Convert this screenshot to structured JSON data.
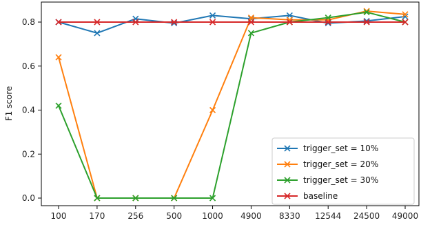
{
  "chart_data": {
    "type": "line",
    "title": "",
    "xlabel": "",
    "ylabel": "F1 score",
    "categories": [
      "100",
      "170",
      "256",
      "500",
      "1000",
      "4900",
      "8330",
      "12544",
      "24500",
      "49000"
    ],
    "ylim": [
      -0.03,
      0.9
    ],
    "yticks": [
      "0.0",
      "0.2",
      "0.4",
      "0.6",
      "0.8"
    ],
    "ytick_values": [
      0.0,
      0.2,
      0.4,
      0.6,
      0.8
    ],
    "grid": false,
    "legend_position": "lower-right",
    "marker": "x",
    "series": [
      {
        "name": "trigger_set = 10%",
        "color": "#1f77b4",
        "values": [
          0.8,
          0.75,
          0.815,
          0.795,
          0.83,
          0.815,
          0.83,
          0.795,
          0.805,
          0.825
        ]
      },
      {
        "name": "trigger_set = 20%",
        "color": "#ff7f0e",
        "values": [
          0.64,
          0.0,
          0.0,
          0.0,
          0.4,
          0.82,
          0.81,
          0.81,
          0.85,
          0.835
        ]
      },
      {
        "name": "trigger_set = 30%",
        "color": "#2ca02c",
        "values": [
          0.42,
          0.0,
          0.0,
          0.0,
          0.0,
          0.75,
          0.8,
          0.82,
          0.845,
          0.8
        ]
      },
      {
        "name": "baseline",
        "color": "#d62728",
        "values": [
          0.8,
          0.8,
          0.8,
          0.8,
          0.8,
          0.8,
          0.8,
          0.8,
          0.8,
          0.8
        ]
      }
    ]
  }
}
